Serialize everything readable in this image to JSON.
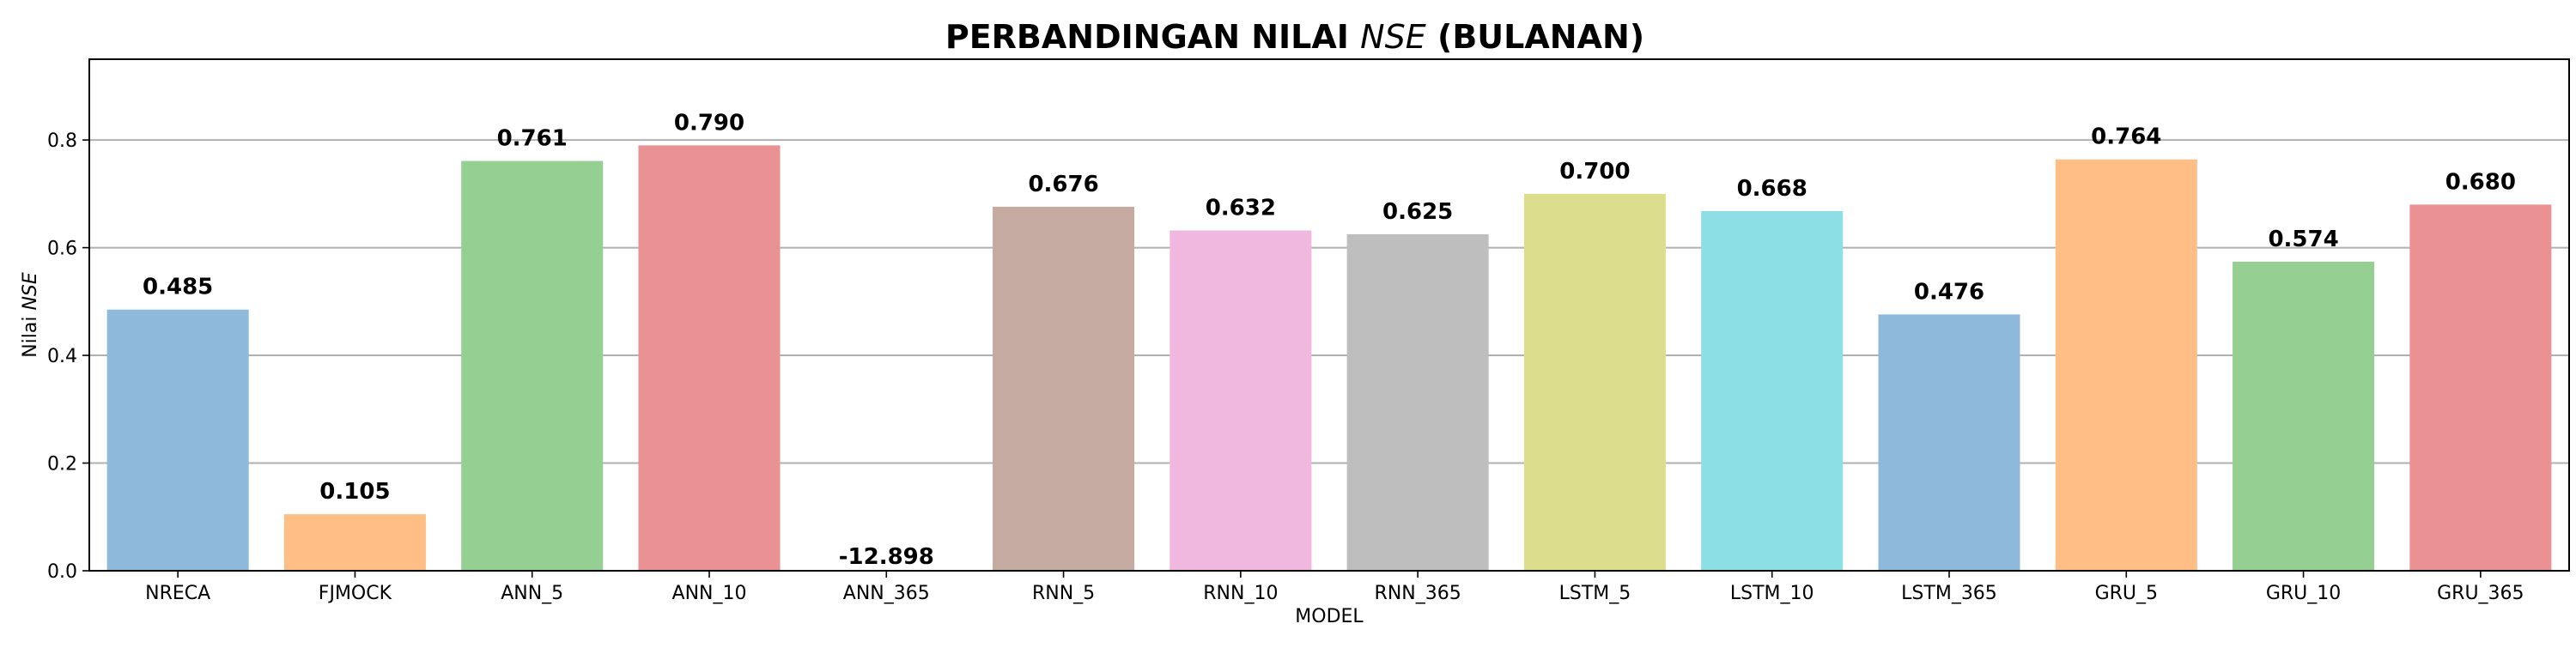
{
  "chart_data": {
    "type": "bar",
    "title": {
      "prefix": "PERBANDINGAN NILAI ",
      "italic": "NSE",
      "suffix": " (BULANAN)"
    },
    "xlabel": "MODEL",
    "ylabel": {
      "prefix": "Nilai ",
      "italic": "NSE"
    },
    "categories": [
      "NRECA",
      "FJMOCK",
      "ANN_5",
      "ANN_10",
      "ANN_365",
      "RNN_5",
      "RNN_10",
      "RNN_365",
      "LSTM_5",
      "LSTM_10",
      "LSTM_365",
      "GRU_5",
      "GRU_10",
      "GRU_365"
    ],
    "values": [
      0.485,
      0.105,
      0.761,
      0.79,
      -12.898,
      0.676,
      0.632,
      0.625,
      0.7,
      0.668,
      0.476,
      0.764,
      0.574,
      0.68
    ],
    "value_labels": [
      "0.485",
      "0.105",
      "0.761",
      "0.790",
      "-12.898",
      "0.676",
      "0.632",
      "0.625",
      "0.700",
      "0.668",
      "0.476",
      "0.764",
      "0.574",
      "0.680"
    ],
    "colors": [
      "#8fb9da",
      "#ffbe86",
      "#95cf92",
      "#ea9293",
      "#c5aee0",
      "#c5aaa2",
      "#f0b8df",
      "#bebebe",
      "#dcde8e",
      "#8ddfe6",
      "#8fb9da",
      "#ffbe86",
      "#95cf92",
      "#ea9293"
    ],
    "ylim": [
      0,
      0.95
    ],
    "yticks": [
      0.0,
      0.2,
      0.4,
      0.6,
      0.8
    ],
    "ytick_labels": [
      "0.0",
      "0.2",
      "0.4",
      "0.6",
      "0.8"
    ],
    "grid": "y-major",
    "legend": "none"
  }
}
